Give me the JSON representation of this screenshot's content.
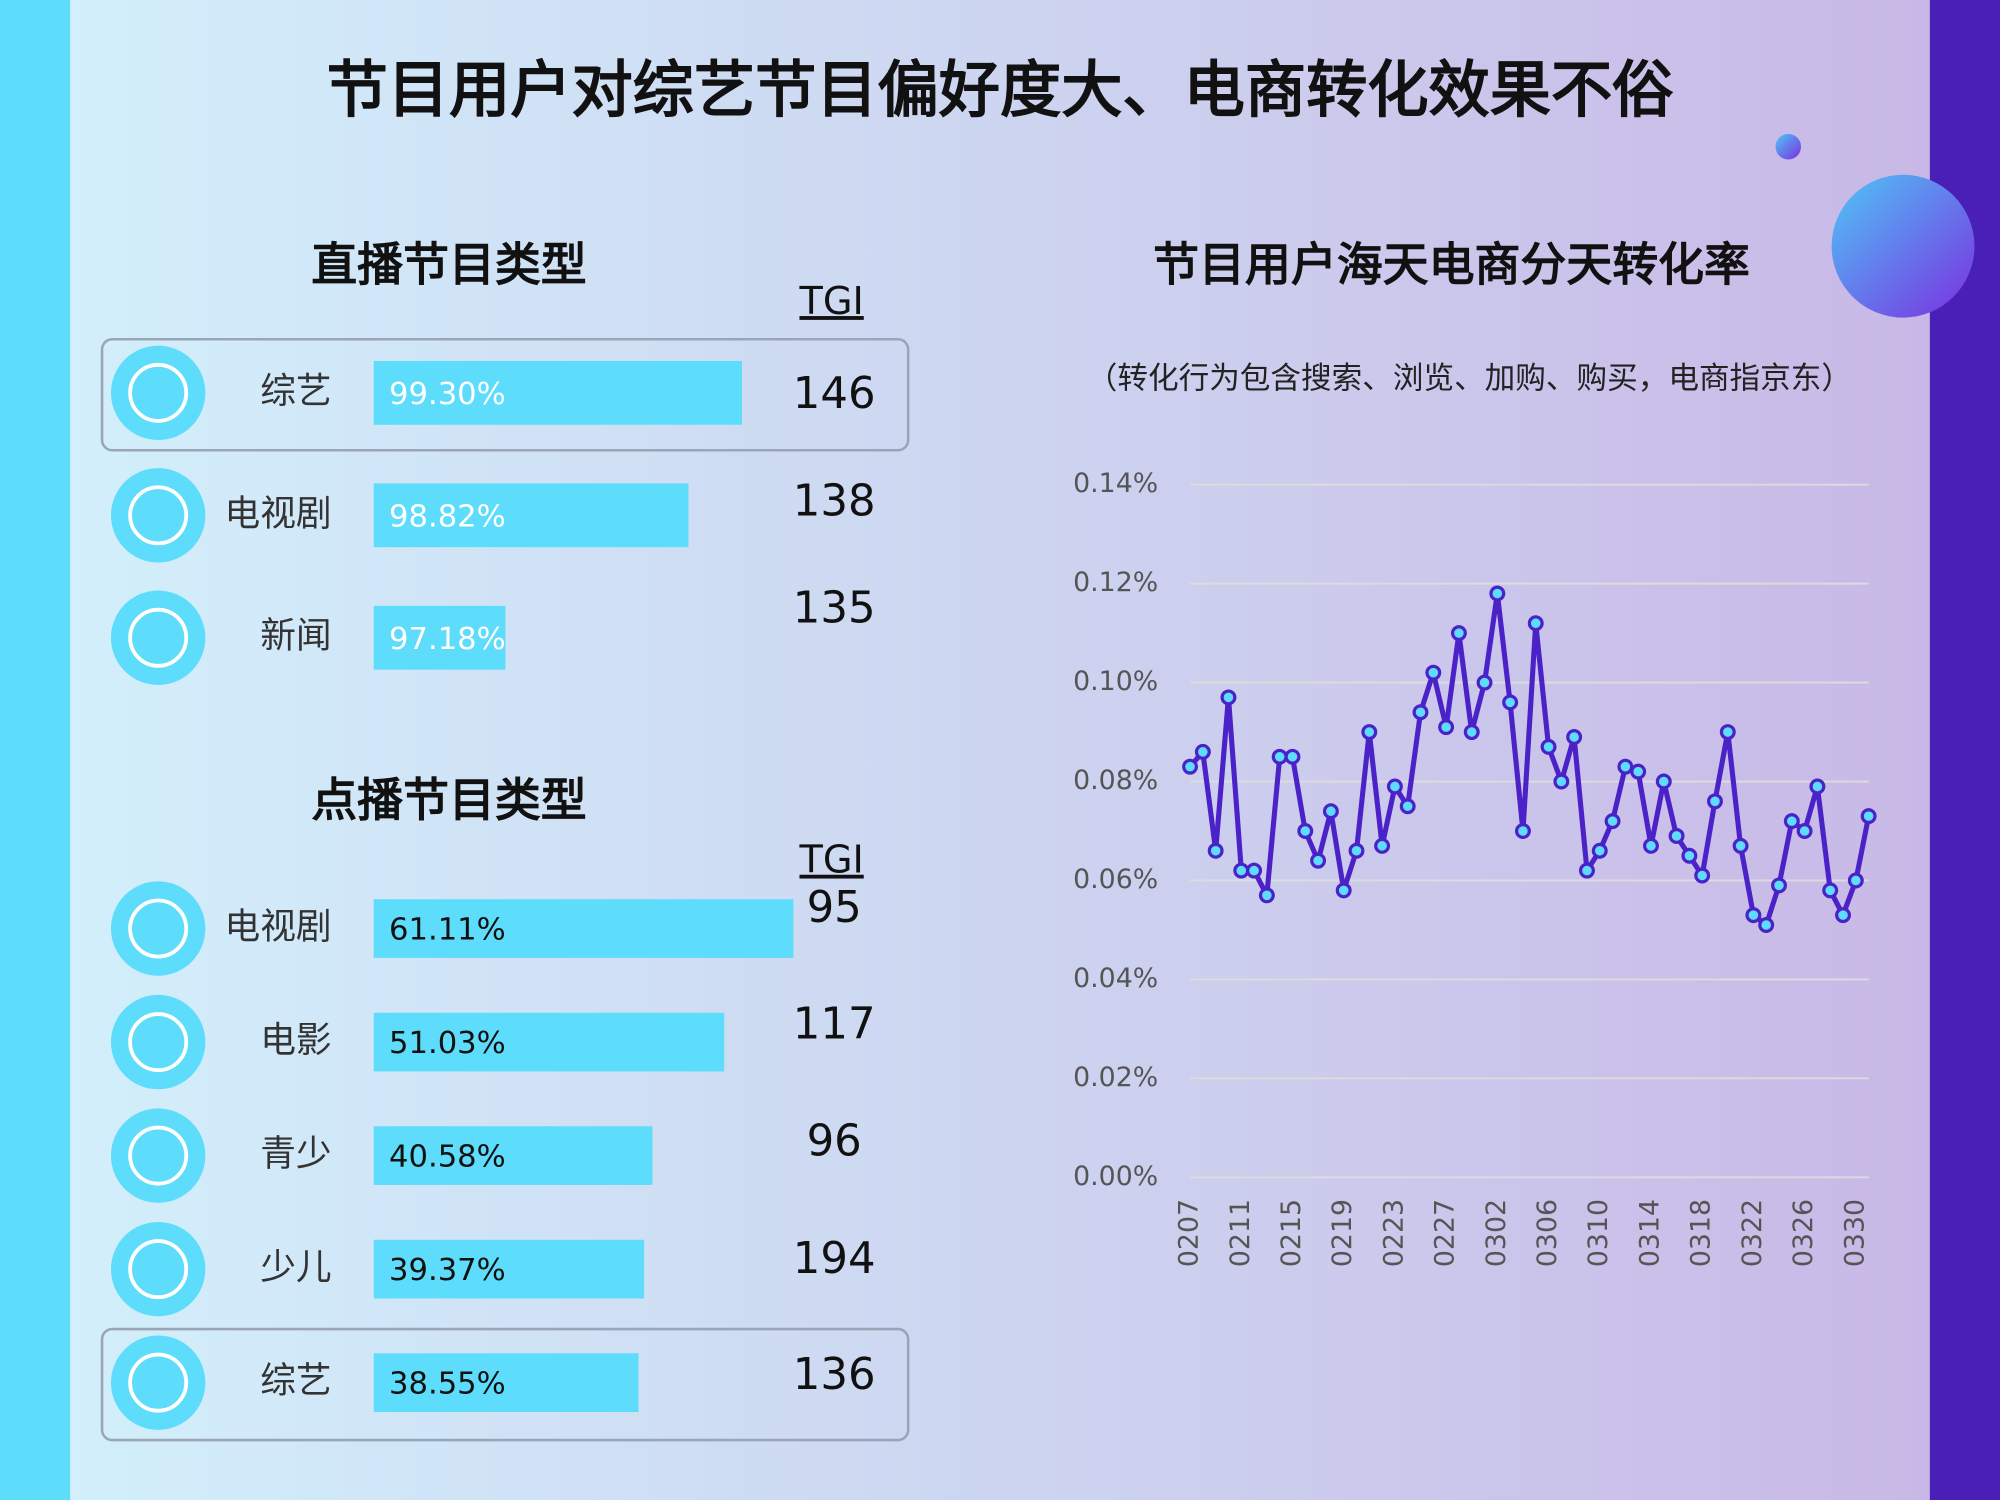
{
  "title": "节目用户对综艺节目偏好度大、电商转化效果不俗",
  "chart_data": [
    {
      "type": "bar",
      "title": "直播节目类型",
      "value_header": "TGI",
      "categories": [
        "综艺",
        "电视剧",
        "新闻"
      ],
      "values": [
        99.3,
        98.82,
        97.18
      ],
      "value_labels": [
        "99.30%",
        "98.82%",
        "97.18%"
      ],
      "tgi": [
        146,
        138,
        135
      ],
      "xlim": [
        96,
        100
      ],
      "color": "#5ddcfb",
      "label_color": "#ffffff",
      "highlight": "综艺"
    },
    {
      "type": "bar",
      "title": "点播节目类型",
      "value_header": "TGI",
      "categories": [
        "电视剧",
        "电影",
        "青少",
        "少儿",
        "综艺"
      ],
      "values": [
        61.11,
        51.03,
        40.58,
        39.37,
        38.55
      ],
      "value_labels": [
        "61.11%",
        "51.03%",
        "40.58%",
        "39.37%",
        "38.55%"
      ],
      "tgi": [
        95,
        117,
        96,
        194,
        136
      ],
      "xlim": [
        0,
        65
      ],
      "color": "#5ddcfb",
      "label_color": "#111111",
      "highlight": "综艺"
    },
    {
      "type": "line",
      "title": "节目用户海天电商分天转化率",
      "subtitle": "（转化行为包含搜索、浏览、加购、购买，电商指京东）",
      "categories": [
        "0207",
        null,
        null,
        null,
        "0211",
        null,
        null,
        null,
        "0215",
        null,
        null,
        null,
        "0219",
        null,
        null,
        null,
        "0223",
        null,
        null,
        null,
        "0227",
        null,
        null,
        null,
        "0302",
        null,
        null,
        null,
        "0306",
        null,
        null,
        null,
        "0310",
        null,
        null,
        null,
        "0314",
        null,
        null,
        null,
        "0318",
        null,
        null,
        null,
        "0322",
        null,
        null,
        null,
        "0326",
        null,
        null,
        null,
        "0330",
        null
      ],
      "values": [
        0.083,
        0.086,
        0.066,
        0.097,
        0.062,
        0.062,
        0.057,
        0.085,
        0.085,
        0.07,
        0.064,
        0.074,
        0.058,
        0.066,
        0.09,
        0.067,
        0.079,
        0.075,
        0.094,
        0.102,
        0.091,
        0.11,
        0.09,
        0.1,
        0.118,
        0.096,
        0.07,
        0.112,
        0.087,
        0.08,
        0.089,
        0.062,
        0.066,
        0.072,
        0.083,
        0.082,
        0.067,
        0.08,
        0.069,
        0.065,
        0.061,
        0.076,
        0.09,
        0.067,
        0.053,
        0.051,
        0.059,
        0.072,
        0.07,
        0.079,
        0.058,
        0.053,
        0.06,
        0.073
      ],
      "color": "#4b22c8",
      "ylim": [
        0,
        0.14
      ],
      "yticks": [
        {
          "value": 0,
          "label": "0.00%"
        },
        {
          "value": 0.02,
          "label": "0.02%"
        },
        {
          "value": 0.04,
          "label": "0.04%"
        },
        {
          "value": 0.06,
          "label": "0.06%"
        },
        {
          "value": 0.08,
          "label": "0.08%"
        },
        {
          "value": 0.1,
          "label": "0.10%"
        },
        {
          "value": 0.12,
          "label": "0.12%"
        },
        {
          "value": 0.14,
          "label": "0.14%"
        }
      ],
      "grid": true
    }
  ]
}
